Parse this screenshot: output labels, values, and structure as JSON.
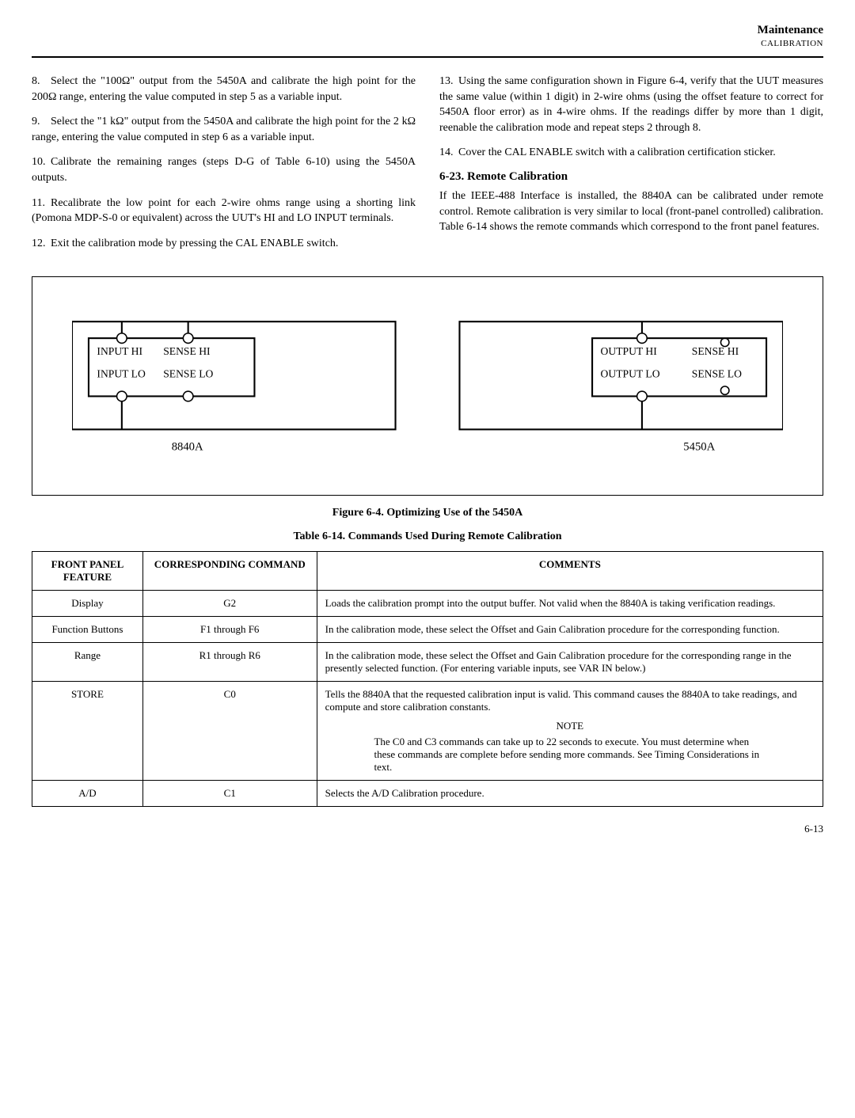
{
  "header": {
    "title": "Maintenance",
    "subtitle": "CALIBRATION"
  },
  "left_steps": [
    {
      "n": "8.",
      "text": "Select the \"100Ω\" output from the 5450A and calibrate the high point for the 200Ω range, entering the value computed in step 5 as a variable input."
    },
    {
      "n": "9.",
      "text": "Select the \"1 kΩ\" output from the 5450A and calibrate the high point for the 2 kΩ range, entering the value computed in step 6 as a variable input."
    },
    {
      "n": "10.",
      "text": "Calibrate the remaining ranges (steps D-G of Table 6-10) using the 5450A outputs."
    },
    {
      "n": "11.",
      "text": "Recalibrate the low point for each 2-wire ohms range using a shorting link (Pomona MDP-S-0 or equivalent) across the UUT's HI and LO INPUT terminals."
    },
    {
      "n": "12.",
      "text": "Exit the calibration mode by pressing the CAL ENABLE switch."
    }
  ],
  "right_steps": [
    {
      "n": "13.",
      "text": "Using the same configuration shown in Figure 6-4, verify that the UUT measures the same value (within 1 digit) in 2-wire ohms (using the offset feature to correct for 5450A floor error) as in 4-wire ohms. If the readings differ by more than 1 digit, reenable the calibration mode and repeat steps 2 through 8."
    },
    {
      "n": "14.",
      "text": "Cover the CAL ENABLE switch with a calibration certification sticker."
    }
  ],
  "section": {
    "heading": "6-23.  Remote Calibration",
    "body": "If the IEEE-488 Interface is installed, the 8840A can be calibrated under remote control. Remote calibration is very similar to local (front-panel controlled) calibration. Table 6-14 shows the remote commands which correspond to the front panel features."
  },
  "diagram": {
    "left": {
      "input_hi": "INPUT HI",
      "sense_hi": "SENSE HI",
      "input_lo": "INPUT LO",
      "sense_lo": "SENSE LO",
      "name": "8840A"
    },
    "right": {
      "output_hi": "OUTPUT HI",
      "sense_hi": "SENSE HI",
      "output_lo": "OUTPUT LO",
      "sense_lo": "SENSE LO",
      "name": "5450A"
    }
  },
  "figure_caption": "Figure 6-4. Optimizing Use of the 5450A",
  "table_caption": "Table 6-14. Commands Used During Remote Calibration",
  "table": {
    "headers": {
      "c1": "FRONT PANEL FEATURE",
      "c2": "CORRESPONDING COMMAND",
      "c3": "COMMENTS"
    },
    "rows": [
      {
        "feature": "Display",
        "cmd": "G2",
        "comment": "Loads the calibration prompt into the output buffer. Not valid when the 8840A is taking verification readings."
      },
      {
        "feature": "Function Buttons",
        "cmd": "F1 through F6",
        "comment": "In the calibration mode, these select the Offset and Gain Calibration procedure for the corresponding function."
      },
      {
        "feature": "Range",
        "cmd": "R1 through R6",
        "comment": "In the calibration mode, these select the Offset and Gain Calibration procedure for the corresponding range in the presently selected function. (For entering variable inputs, see VAR IN below.)"
      },
      {
        "feature": "STORE",
        "cmd": "C0",
        "comment": "Tells the 8840A that the requested calibration input is valid. This command causes the 8840A to take readings, and compute and store calibration constants.",
        "note_label": "NOTE",
        "note": "The C0 and C3 commands can take up to 22 seconds to execute. You must determine when these commands are complete before sending more commands. See Timing Considerations in text."
      },
      {
        "feature": "A/D",
        "cmd": "C1",
        "comment": "Selects the A/D Calibration procedure."
      }
    ]
  },
  "page_num": "6-13"
}
